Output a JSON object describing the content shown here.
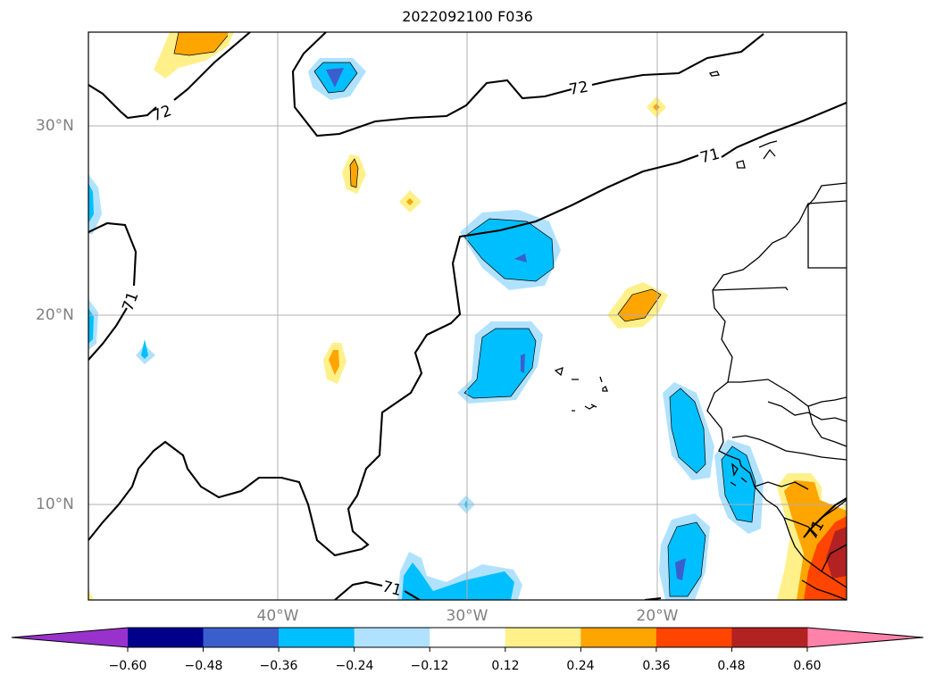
{
  "title": "2022092100 F036",
  "map": {
    "lat_labels": [
      {
        "text": "30°N",
        "lat": 30
      },
      {
        "text": "20°N",
        "lat": 20
      },
      {
        "text": "10°N",
        "lat": 10
      }
    ],
    "lon_labels": [
      {
        "text": "40°W",
        "lon": -40
      },
      {
        "text": "30°W",
        "lon": -30
      },
      {
        "text": "20°W",
        "lon": -20
      }
    ],
    "contour_labels": [
      "72",
      "72",
      "71",
      "71",
      "71",
      "71"
    ],
    "extent": {
      "lon_min": -50,
      "lon_max": -10,
      "lat_min": 5,
      "lat_max": 35
    }
  },
  "colorbar": {
    "ticks": [
      "−0.60",
      "−0.48",
      "−0.36",
      "−0.24",
      "−0.12",
      "0.12",
      "0.24",
      "0.36",
      "0.48",
      "0.60"
    ],
    "colors": [
      "#9932cc",
      "#00008b",
      "#3a5fcd",
      "#00bfff",
      "#b0e2ff",
      "#ffffff",
      "#fff08a",
      "#ffa500",
      "#ff4500",
      "#b22222",
      "#ff82ab"
    ]
  }
}
